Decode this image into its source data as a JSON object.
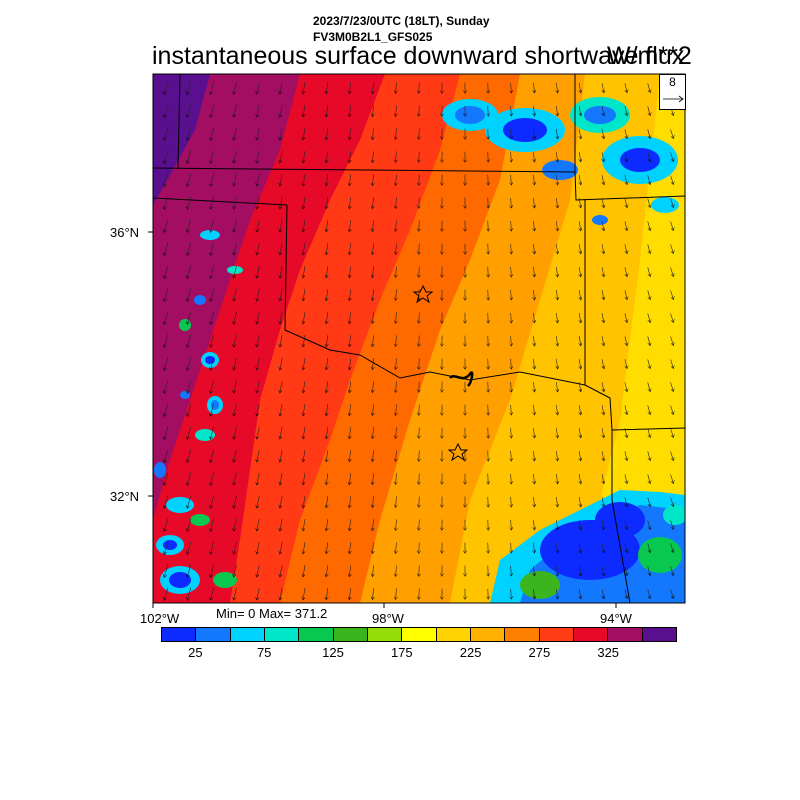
{
  "header": {
    "datetime": "2023/7/23/0UTC (18LT), Sunday",
    "model": "FV3M0B2L1_GFS025",
    "title": "instantaneous surface downward shortwave flux",
    "units": "W/m**2"
  },
  "map": {
    "region": "Southern Plains (Oklahoma / Texas)",
    "lat_labels": [
      "36°N",
      "32°N"
    ],
    "lon_labels": [
      "102°W",
      "98°W",
      "94°W"
    ],
    "field_band_colors": [
      "#5a0f8f",
      "#a30e63",
      "#e60a28",
      "#ff3a14",
      "#ff6a00",
      "#ffa000",
      "#ffc300",
      "#ffdd00"
    ],
    "cloud_colors": [
      "#0d2bff",
      "#1478ff",
      "#00d2ff",
      "#00e6c8",
      "#08c850",
      "#3cb41e"
    ],
    "city_markers": [
      "star",
      "star"
    ]
  },
  "reference_vector": {
    "value": "8",
    "icon": "arrow-right-icon"
  },
  "stats": {
    "text": "Min= 0 Max= 371.2",
    "min": 0,
    "max": 371.2
  },
  "colorbar": {
    "colors": [
      "#0d2bff",
      "#1478ff",
      "#00d2ff",
      "#00e6c8",
      "#08c850",
      "#3cb41e",
      "#96dc0a",
      "#ffff00",
      "#ffd200",
      "#ffb000",
      "#ff7f00",
      "#ff3c14",
      "#e60a28",
      "#a30e63",
      "#5a0f8f"
    ],
    "labels": [
      "25",
      "75",
      "125",
      "175",
      "225",
      "275",
      "325"
    ]
  }
}
